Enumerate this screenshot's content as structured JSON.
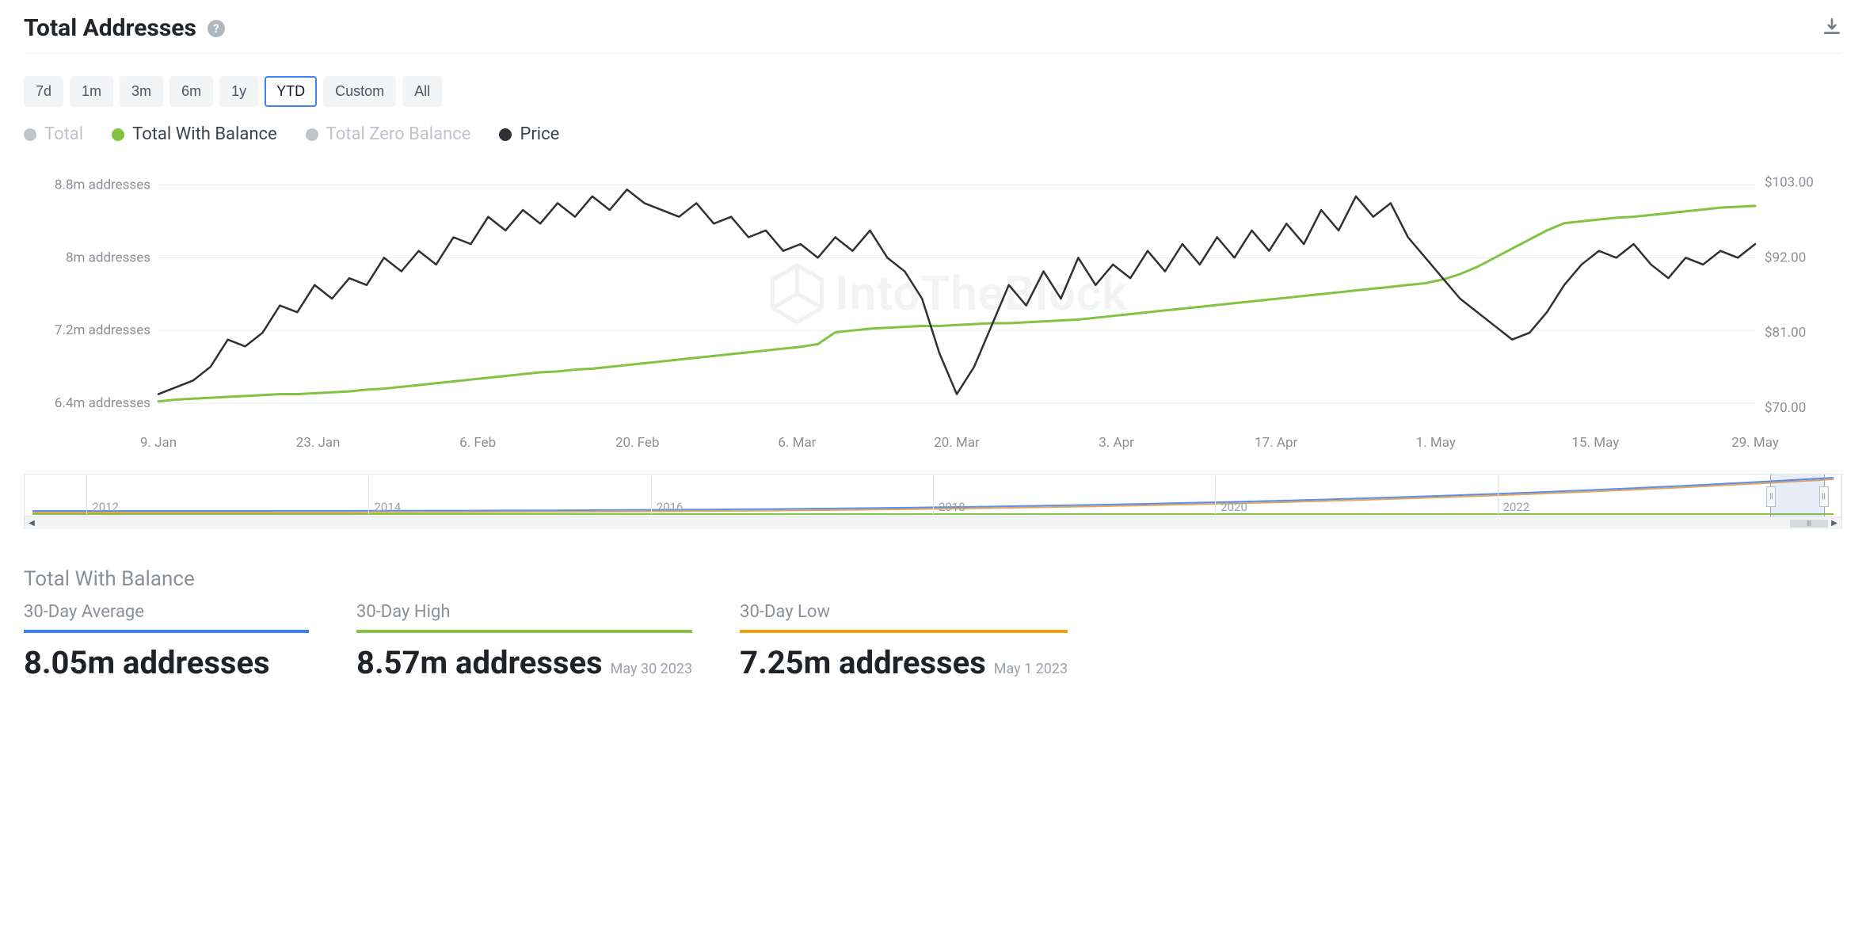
{
  "header": {
    "title": "Total Addresses"
  },
  "ranges": {
    "items": [
      "7d",
      "1m",
      "3m",
      "6m",
      "1y",
      "YTD",
      "Custom",
      "All"
    ],
    "active_index": 5
  },
  "legend": {
    "items": [
      {
        "label": "Total",
        "color": "#c0c4c9",
        "active": false
      },
      {
        "label": "Total With Balance",
        "color": "#82c341",
        "active": true
      },
      {
        "label": "Total Zero Balance",
        "color": "#c0c4c9",
        "active": false
      },
      {
        "label": "Price",
        "color": "#2f3135",
        "active": true
      }
    ]
  },
  "chart": {
    "type": "line",
    "background_color": "#ffffff",
    "grid_color": "#e8eaee",
    "watermark_text": "IntoTheBlock",
    "left_axis": {
      "label_suffix": " addresses",
      "ticks": [
        6.4,
        7.2,
        8.0,
        8.8
      ],
      "tick_labels": [
        "6.4m addresses",
        "7.2m addresses",
        "8m addresses",
        "8.8m addresses"
      ],
      "min": 6.2,
      "max": 8.9
    },
    "right_axis": {
      "prefix": "$",
      "ticks": [
        70,
        81,
        92,
        103
      ],
      "tick_labels": [
        "$70.00",
        "$81.00",
        "$92.00",
        "$103.00"
      ],
      "min": 68,
      "max": 104
    },
    "x_axis": {
      "tick_labels": [
        "9. Jan",
        "23. Jan",
        "6. Feb",
        "20. Feb",
        "6. Mar",
        "20. Mar",
        "3. Apr",
        "17. Apr",
        "1. May",
        "15. May",
        "29. May"
      ]
    },
    "series": {
      "balance": {
        "color": "#82c341",
        "width": 3,
        "values": [
          6.42,
          6.44,
          6.45,
          6.46,
          6.47,
          6.48,
          6.49,
          6.5,
          6.5,
          6.51,
          6.52,
          6.53,
          6.55,
          6.56,
          6.58,
          6.6,
          6.62,
          6.64,
          6.66,
          6.68,
          6.7,
          6.72,
          6.74,
          6.75,
          6.77,
          6.78,
          6.8,
          6.82,
          6.84,
          6.86,
          6.88,
          6.9,
          6.92,
          6.94,
          6.96,
          6.98,
          7.0,
          7.02,
          7.05,
          7.18,
          7.2,
          7.22,
          7.23,
          7.24,
          7.25,
          7.25,
          7.26,
          7.27,
          7.28,
          7.28,
          7.29,
          7.3,
          7.31,
          7.32,
          7.34,
          7.36,
          7.38,
          7.4,
          7.42,
          7.44,
          7.46,
          7.48,
          7.5,
          7.52,
          7.54,
          7.56,
          7.58,
          7.6,
          7.62,
          7.64,
          7.66,
          7.68,
          7.7,
          7.72,
          7.76,
          7.82,
          7.9,
          8.0,
          8.1,
          8.2,
          8.3,
          8.38,
          8.4,
          8.42,
          8.44,
          8.45,
          8.47,
          8.49,
          8.51,
          8.53,
          8.55,
          8.56,
          8.57
        ]
      },
      "price": {
        "color": "#2f3135",
        "width": 2.5,
        "values": [
          72,
          73,
          74,
          76,
          80,
          79,
          81,
          85,
          84,
          88,
          86,
          89,
          88,
          92,
          90,
          93,
          91,
          95,
          94,
          98,
          96,
          99,
          97,
          100,
          98,
          101,
          99,
          102,
          100,
          99,
          98,
          100,
          97,
          98,
          95,
          96,
          93,
          94,
          92,
          95,
          93,
          96,
          92,
          90,
          86,
          78,
          72,
          76,
          82,
          88,
          85,
          90,
          86,
          92,
          88,
          91,
          89,
          93,
          90,
          94,
          91,
          95,
          92,
          96,
          93,
          97,
          94,
          99,
          96,
          101,
          98,
          100,
          95,
          92,
          89,
          86,
          84,
          82,
          80,
          81,
          84,
          88,
          91,
          93,
          92,
          94,
          91,
          89,
          92,
          91,
          93,
          92,
          94
        ]
      }
    }
  },
  "navigator": {
    "years": [
      "2012",
      "2014",
      "2016",
      "2018",
      "2020",
      "2022"
    ],
    "selection_left_pct": 96.5,
    "selection_width_pct": 3.0,
    "series_a_color": "#5b8ff0",
    "series_b_color": "#e3a857",
    "series_c_color": "#82c341"
  },
  "stats": {
    "section_title": "Total With Balance",
    "blocks": [
      {
        "label": "30-Day Average",
        "underline_color": "#3b82f6",
        "value": "8.05m addresses",
        "date": ""
      },
      {
        "label": "30-Day High",
        "underline_color": "#82c341",
        "value": "8.57m addresses",
        "date": "May 30 2023"
      },
      {
        "label": "30-Day Low",
        "underline_color": "#f59e0b",
        "value": "7.25m addresses",
        "date": "May 1 2023"
      }
    ]
  }
}
